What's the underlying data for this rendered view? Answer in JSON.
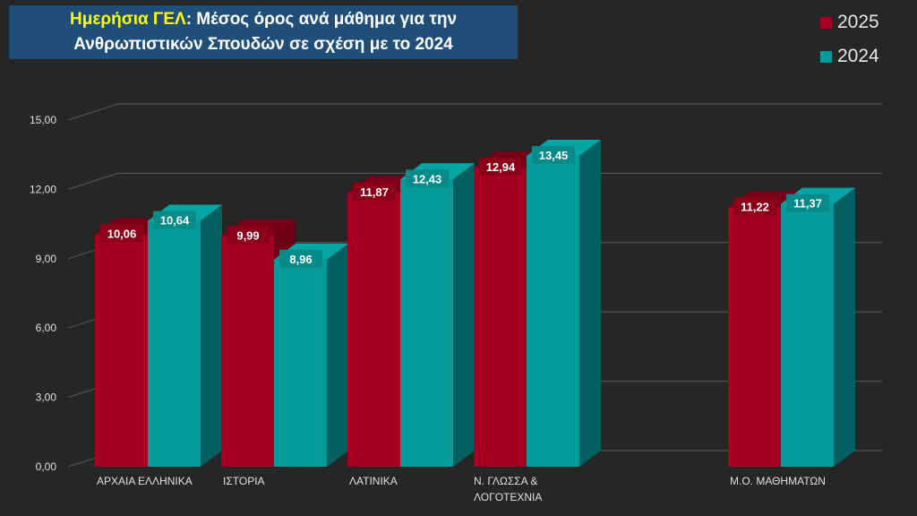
{
  "chart_data": {
    "type": "bar",
    "title": {
      "prefix": "Ημερήσια ΓΕΛ",
      "line1_rest": ": Μέσος όρος ανά μάθημα για την",
      "line2": "Ανθρωπιστικών Σπουδών σε σχέση με το 2024"
    },
    "categories": [
      [
        "ΑΡΧΑΙΑ ΕΛΛΗΝΙΚΑ"
      ],
      [
        "ΙΣΤΟΡΙΑ"
      ],
      [
        "ΛΑΤΙΝΙΚΑ"
      ],
      [
        "Ν. ΓΛΩΣΣΑ &",
        "ΛΟΓΟΤΕΧΝΙΑ"
      ],
      [
        "Μ.Ο. ΜΑΘΗΜΑΤΩΝ"
      ]
    ],
    "series": [
      {
        "name": "2025",
        "color": "#a50021",
        "top": "#7a0018",
        "side": "#6e0016",
        "labelBg": "#8c0019",
        "values": [
          10.06,
          9.99,
          11.87,
          12.94,
          11.22
        ],
        "labels": [
          "10,06",
          "9,99",
          "11,87",
          "12,94",
          "11,22"
        ]
      },
      {
        "name": "2024",
        "color": "#069b9b",
        "top": "#05a5a5",
        "side": "#046060",
        "labelBg": "#078a8a",
        "values": [
          10.64,
          8.96,
          12.43,
          13.45,
          11.37
        ],
        "labels": [
          "10,64",
          "8,96",
          "12,43",
          "13,45",
          "11,37"
        ]
      }
    ],
    "yticks": [
      "0,00",
      "3,00",
      "6,00",
      "9,00",
      "12,00",
      "15,00"
    ],
    "ylim": [
      0,
      15
    ],
    "ystep": 3,
    "grid": true,
    "legend": "top-right"
  }
}
